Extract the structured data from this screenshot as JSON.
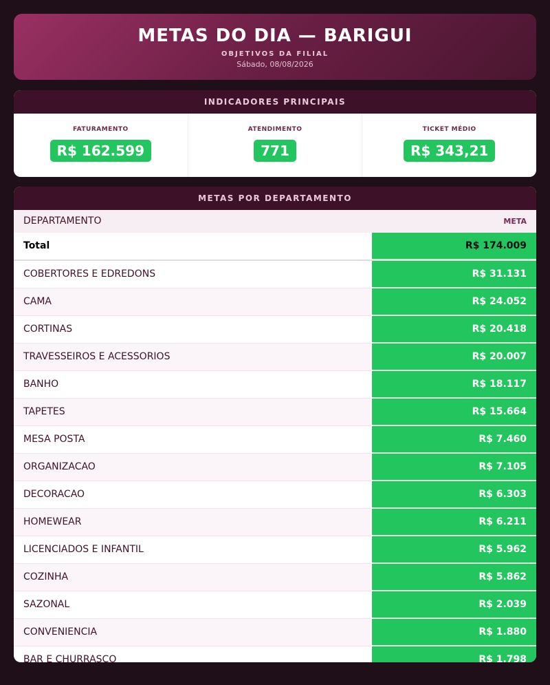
{
  "header": {
    "title": "METAS DO DIA — BARIGUI",
    "subtitle": "OBJETIVOS DA FILIAL",
    "date": "Sábado, 08/08/2026"
  },
  "indicators": {
    "title": "INDICADORES PRINCIPAIS",
    "items": [
      {
        "label": "FATURAMENTO",
        "value": "R$ 162.599"
      },
      {
        "label": "ATENDIMENTO",
        "value": "771"
      },
      {
        "label": "TICKET MÉDIO",
        "value": "R$ 343,21"
      }
    ]
  },
  "table": {
    "title": "METAS POR DEPARTAMENTO",
    "columns": [
      "DEPARTAMENTO",
      "META"
    ],
    "total": [
      "Total",
      "R$ 174.009"
    ],
    "rows": [
      [
        "COBERTORES E EDREDONS",
        "R$ 31.131"
      ],
      [
        "CAMA",
        "R$ 24.052"
      ],
      [
        "CORTINAS",
        "R$ 20.418"
      ],
      [
        "TRAVESSEIROS E ACESSORIOS",
        "R$ 20.007"
      ],
      [
        "BANHO",
        "R$ 18.117"
      ],
      [
        "TAPETES",
        "R$ 15.664"
      ],
      [
        "MESA POSTA",
        "R$ 7.460"
      ],
      [
        "ORGANIZACAO",
        "R$ 7.105"
      ],
      [
        "DECORACAO",
        "R$ 6.303"
      ],
      [
        "HOMEWEAR",
        "R$ 6.211"
      ],
      [
        "LICENCIADOS E INFANTIL",
        "R$ 5.962"
      ],
      [
        "COZINHA",
        "R$ 5.862"
      ],
      [
        "SAZONAL",
        "R$ 2.039"
      ],
      [
        "CONVENIENCIA",
        "R$ 1.880"
      ],
      [
        "BAR E CHURRASCO",
        "R$ 1.798"
      ]
    ]
  }
}
